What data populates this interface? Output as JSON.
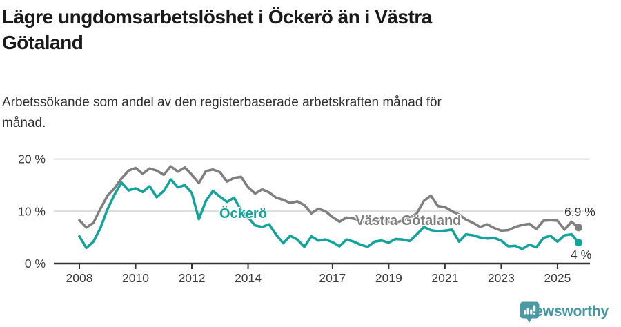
{
  "header": {
    "title_lines": [
      "Lägre ungdomsarbetslöshet i Öckerö än i Västra",
      "Götaland"
    ],
    "subtitle_lines": [
      "Arbetssökande som andel av den registerbaserade arbetskraften månad för",
      "månad."
    ]
  },
  "colors": {
    "teal": "#12a39a",
    "gray": "#7f7f7f",
    "grid": "#d9d9d9",
    "axis": "#333333",
    "tick_text": "#3a3a3a",
    "annotation": "#333333",
    "brand_teal": "#3f98a1",
    "title_text": "#1a1a1a"
  },
  "chart_data": {
    "type": "line",
    "title": "Lägre ungdomsarbetslöshet i Öckerö än i Västra Götaland",
    "subtitle": "Arbetssökande som andel av den registerbaserade arbetskraften månad för månad.",
    "xlabel": "",
    "ylabel": "",
    "ylim": [
      0,
      21
    ],
    "xlim": [
      2008,
      2026.2
    ],
    "grid": "horizontal",
    "legend_position": "inline-on-lines",
    "x_years": [
      2008,
      2008.25,
      2008.5,
      2008.75,
      2009,
      2009.25,
      2009.5,
      2009.75,
      2010,
      2010.25,
      2010.5,
      2010.75,
      2011,
      2011.25,
      2011.5,
      2011.75,
      2012,
      2012.25,
      2012.5,
      2012.75,
      2013,
      2013.25,
      2013.5,
      2013.75,
      2014,
      2014.25,
      2014.5,
      2014.75,
      2015,
      2015.25,
      2015.5,
      2015.75,
      2016,
      2016.25,
      2016.5,
      2016.75,
      2017,
      2017.25,
      2017.5,
      2017.75,
      2018,
      2018.25,
      2018.5,
      2018.75,
      2019,
      2019.25,
      2019.5,
      2019.75,
      2020,
      2020.25,
      2020.5,
      2020.75,
      2021,
      2021.25,
      2021.5,
      2021.75,
      2022,
      2022.25,
      2022.5,
      2022.75,
      2023,
      2023.25,
      2023.5,
      2023.75,
      2024,
      2024.25,
      2024.5,
      2024.75,
      2025,
      2025.25,
      2025.5,
      2025.75
    ],
    "series": [
      {
        "name": "Västra Götaland",
        "color": "#7f7f7f",
        "end_label": "6,9 %",
        "end_value": 6.9,
        "values": [
          8.3,
          6.9,
          7.8,
          10.5,
          13.0,
          14.4,
          16.3,
          17.8,
          18.3,
          17.2,
          18.2,
          17.8,
          17.0,
          18.6,
          17.6,
          18.4,
          17.0,
          15.4,
          17.7,
          18.0,
          17.5,
          15.7,
          16.4,
          16.6,
          14.6,
          13.4,
          14.2,
          13.6,
          12.6,
          12.2,
          11.6,
          11.9,
          11.2,
          9.6,
          10.5,
          10.0,
          8.9,
          8.0,
          8.8,
          8.6,
          8.2,
          7.8,
          8.4,
          8.2,
          8.0,
          7.8,
          8.3,
          8.8,
          9.6,
          12.0,
          13.0,
          11.0,
          10.8,
          10.0,
          9.4,
          8.4,
          7.8,
          7.0,
          7.5,
          6.8,
          6.3,
          6.4,
          7.0,
          7.4,
          7.6,
          6.6,
          8.2,
          8.3,
          8.2,
          6.5,
          8.0,
          6.9
        ]
      },
      {
        "name": "Öckerö",
        "color": "#12a39a",
        "end_label": "4 %",
        "end_value": 4,
        "values": [
          5.2,
          3.0,
          4.2,
          6.8,
          10.4,
          13.2,
          15.5,
          14.0,
          14.4,
          13.7,
          14.8,
          12.7,
          13.9,
          16.1,
          14.6,
          15.0,
          13.5,
          8.5,
          12.0,
          13.9,
          12.8,
          11.8,
          12.6,
          10.2,
          8.8,
          7.3,
          7.0,
          7.5,
          5.5,
          3.9,
          5.3,
          4.6,
          3.2,
          5.2,
          4.4,
          4.6,
          4.1,
          3.3,
          4.6,
          4.2,
          3.6,
          3.2,
          4.2,
          4.4,
          4.0,
          4.7,
          4.6,
          4.3,
          5.6,
          7.0,
          6.4,
          6.2,
          6.3,
          6.5,
          4.2,
          5.6,
          5.4,
          5.0,
          4.8,
          4.9,
          4.4,
          3.3,
          3.4,
          2.8,
          3.6,
          3.1,
          4.9,
          5.3,
          4.2,
          5.4,
          5.6,
          4.0
        ]
      }
    ],
    "x_ticks": [
      {
        "label": "2008",
        "year": 2008
      },
      {
        "label": "2010",
        "year": 2010
      },
      {
        "label": "2012",
        "year": 2012
      },
      {
        "label": "2014",
        "year": 2014
      },
      {
        "label": "2017",
        "year": 2017
      },
      {
        "label": "2019",
        "year": 2019
      },
      {
        "label": "2021",
        "year": 2021
      },
      {
        "label": "2023",
        "year": 2023
      },
      {
        "label": "2025",
        "year": 2025
      }
    ],
    "y_ticks": [
      {
        "label": "0 %",
        "value": 0
      },
      {
        "label": "10 %",
        "value": 10
      },
      {
        "label": "20 %",
        "value": 20
      }
    ]
  },
  "footer": {
    "brand": "Newsworthy"
  }
}
